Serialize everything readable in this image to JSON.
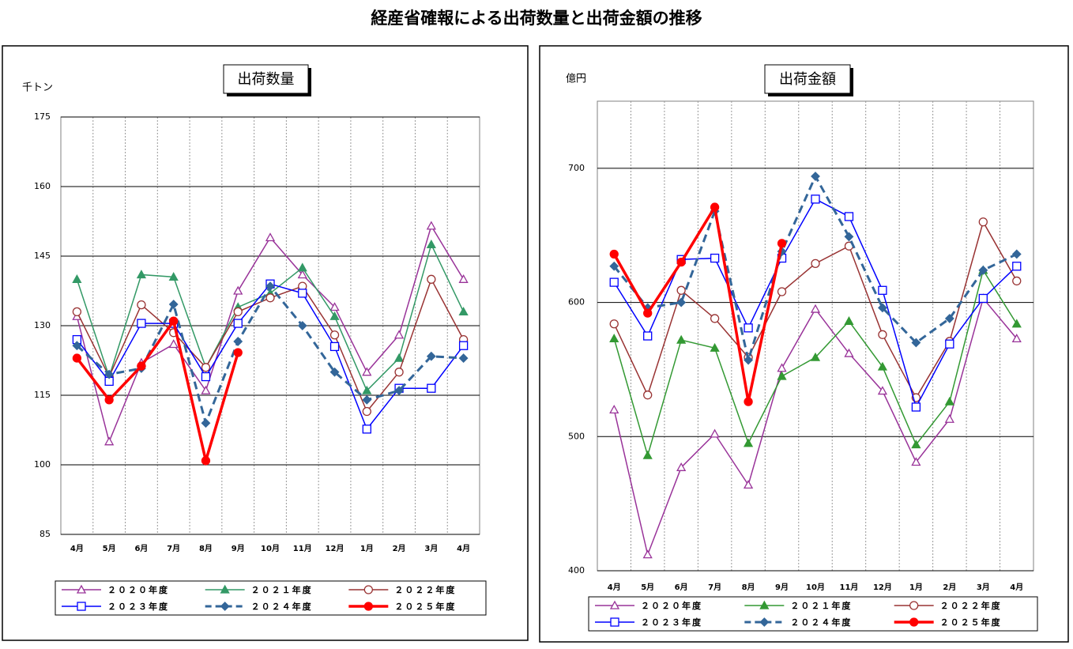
{
  "title": "経産省確報による出荷数量と出荷金額の推移",
  "chart_data": [
    {
      "type": "line",
      "title": "出荷数量",
      "y_label": "千トン",
      "categories": [
        "4月",
        "5月",
        "6月",
        "7月",
        "8月",
        "9月",
        "10月",
        "11月",
        "12月",
        "1月",
        "2月",
        "3月",
        "4月"
      ],
      "ylim": [
        85,
        175
      ],
      "yticks": [
        85,
        100,
        115,
        130,
        145,
        160,
        175
      ],
      "grid": true,
      "legend": "bottom",
      "series": [
        {
          "name": "２０２０年度",
          "color": "#993399",
          "marker": "triangle-open",
          "dashed": false,
          "width": 1.5,
          "values": [
            132,
            105,
            122,
            126,
            116,
            137.5,
            149,
            141,
            134,
            120,
            128,
            151.5,
            140
          ]
        },
        {
          "name": "２０２１年度",
          "color": "#339966",
          "marker": "triangle",
          "dashed": false,
          "width": 1.5,
          "values": [
            140,
            119,
            141,
            140.5,
            121,
            134,
            137,
            142.5,
            132,
            116,
            123,
            147.5,
            133
          ]
        },
        {
          "name": "２０２２年度",
          "color": "#993333",
          "marker": "circle-open",
          "dashed": false,
          "width": 1.5,
          "values": [
            133,
            119,
            134.5,
            128.5,
            121,
            133,
            136,
            138.5,
            128,
            111.5,
            120,
            140,
            127
          ]
        },
        {
          "name": "２０２３年度",
          "color": "#0000ff",
          "marker": "square-open",
          "dashed": false,
          "width": 1.5,
          "values": [
            127,
            118,
            130.5,
            130.5,
            119,
            130.5,
            139,
            137,
            125.5,
            107.7,
            116.5,
            116.5,
            125.7
          ]
        },
        {
          "name": "２０２４年度",
          "color": "#336699",
          "marker": "diamond",
          "dashed": true,
          "width": 3,
          "values": [
            125.7,
            119.5,
            120.8,
            134.6,
            109,
            126.6,
            138.5,
            130,
            120,
            114,
            116,
            123.4,
            123
          ]
        },
        {
          "name": "２０２５年度",
          "color": "#ff0000",
          "marker": "circle",
          "dashed": false,
          "width": 3.5,
          "values": [
            123,
            114,
            121.3,
            131,
            100.9,
            124.2,
            null,
            null,
            null,
            null,
            null,
            null,
            null
          ]
        }
      ]
    },
    {
      "type": "line",
      "title": "出荷金額",
      "y_label": "億円",
      "categories": [
        "4月",
        "5月",
        "6月",
        "7月",
        "8月",
        "9月",
        "10月",
        "11月",
        "12月",
        "1月",
        "2月",
        "3月",
        "4月"
      ],
      "ylim": [
        400,
        750
      ],
      "yticks": [
        400,
        500,
        600,
        700
      ],
      "grid": true,
      "legend": "bottom",
      "series": [
        {
          "name": "２０２０年度",
          "color": "#993399",
          "marker": "triangle-open",
          "dashed": false,
          "width": 1.5,
          "values": [
            520,
            412,
            477,
            502,
            464,
            551,
            595,
            562,
            534,
            481,
            513,
            603,
            573
          ]
        },
        {
          "name": "２０２１年度",
          "color": "#339933",
          "marker": "triangle",
          "dashed": false,
          "width": 1.5,
          "values": [
            573,
            486,
            572,
            566,
            495,
            545,
            559,
            586,
            552,
            494,
            526,
            624,
            584
          ]
        },
        {
          "name": "２０２２年度",
          "color": "#993333",
          "marker": "circle-open",
          "dashed": false,
          "width": 1.5,
          "values": [
            584,
            531,
            609,
            588,
            559,
            608,
            629,
            642,
            576,
            529,
            571,
            660,
            616
          ]
        },
        {
          "name": "２０２３年度",
          "color": "#0000ff",
          "marker": "square-open",
          "dashed": false,
          "width": 1.5,
          "values": [
            615,
            575,
            632,
            633,
            581,
            633,
            677,
            664,
            609,
            522,
            569,
            603,
            627
          ]
        },
        {
          "name": "２０２４年度",
          "color": "#336699",
          "marker": "diamond",
          "dashed": true,
          "width": 3,
          "values": [
            627,
            596,
            600,
            668,
            557,
            638,
            694,
            649,
            596,
            570,
            588,
            624,
            636
          ]
        },
        {
          "name": "２０２５年度",
          "color": "#ff0000",
          "marker": "circle",
          "dashed": false,
          "width": 3.5,
          "values": [
            636,
            592,
            630,
            671,
            526,
            644,
            null,
            null,
            null,
            null,
            null,
            null,
            null
          ]
        }
      ]
    }
  ]
}
